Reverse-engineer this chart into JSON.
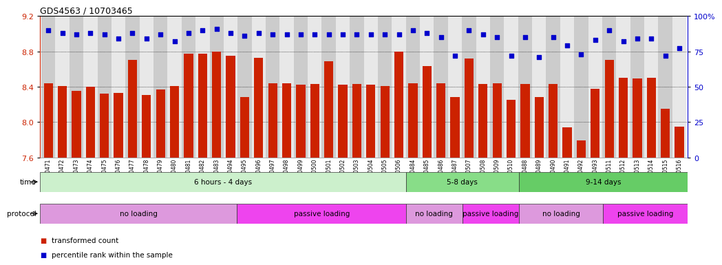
{
  "title": "GDS4563 / 10703465",
  "samples": [
    "GSM930471",
    "GSM930472",
    "GSM930473",
    "GSM930474",
    "GSM930475",
    "GSM930476",
    "GSM930477",
    "GSM930478",
    "GSM930479",
    "GSM930480",
    "GSM930481",
    "GSM930482",
    "GSM930483",
    "GSM930494",
    "GSM930495",
    "GSM930496",
    "GSM930497",
    "GSM930498",
    "GSM930499",
    "GSM930500",
    "GSM930501",
    "GSM930502",
    "GSM930503",
    "GSM930504",
    "GSM930505",
    "GSM930506",
    "GSM930484",
    "GSM930485",
    "GSM930486",
    "GSM930487",
    "GSM930507",
    "GSM930508",
    "GSM930509",
    "GSM930510",
    "GSM930488",
    "GSM930489",
    "GSM930490",
    "GSM930491",
    "GSM930492",
    "GSM930493",
    "GSM930511",
    "GSM930512",
    "GSM930513",
    "GSM930514",
    "GSM930515",
    "GSM930516"
  ],
  "bar_values": [
    8.44,
    8.41,
    8.35,
    8.4,
    8.32,
    8.33,
    8.7,
    8.31,
    8.37,
    8.41,
    8.77,
    8.77,
    8.8,
    8.75,
    8.28,
    8.73,
    8.44,
    8.44,
    8.42,
    8.43,
    8.69,
    8.42,
    8.43,
    8.42,
    8.41,
    8.8,
    8.44,
    8.63,
    8.44,
    8.28,
    8.72,
    8.43,
    8.44,
    8.25,
    8.43,
    8.28,
    8.43,
    7.94,
    7.79,
    8.38,
    8.7,
    8.5,
    8.49,
    8.5,
    8.15,
    7.95
  ],
  "percentile_values": [
    90,
    88,
    87,
    88,
    87,
    84,
    88,
    84,
    87,
    82,
    88,
    90,
    91,
    88,
    86,
    88,
    87,
    87,
    87,
    87,
    87,
    87,
    87,
    87,
    87,
    87,
    90,
    88,
    85,
    72,
    90,
    87,
    85,
    72,
    85,
    71,
    85,
    79,
    73,
    83,
    90,
    82,
    84,
    84,
    72,
    77
  ],
  "ylim_left": [
    7.6,
    9.2
  ],
  "ylim_right": [
    0,
    100
  ],
  "yticks_left": [
    7.6,
    8.0,
    8.4,
    8.8,
    9.2
  ],
  "yticks_right": [
    0,
    25,
    50,
    75,
    100
  ],
  "bar_color": "#cc2200",
  "dot_color": "#0000cc",
  "bar_bottom": 7.6,
  "time_groups": [
    {
      "label": "6 hours - 4 days",
      "start": 0,
      "end": 26,
      "color": "#ccf0cc"
    },
    {
      "label": "5-8 days",
      "start": 26,
      "end": 34,
      "color": "#88dd88"
    },
    {
      "label": "9-14 days",
      "start": 34,
      "end": 46,
      "color": "#66cc66"
    }
  ],
  "protocol_groups": [
    {
      "label": "no loading",
      "start": 0,
      "end": 14,
      "color": "#dd99dd"
    },
    {
      "label": "passive loading",
      "start": 14,
      "end": 26,
      "color": "#ee44ee"
    },
    {
      "label": "no loading",
      "start": 26,
      "end": 30,
      "color": "#dd99dd"
    },
    {
      "label": "passive loading",
      "start": 30,
      "end": 34,
      "color": "#ee44ee"
    },
    {
      "label": "no loading",
      "start": 34,
      "end": 40,
      "color": "#dd99dd"
    },
    {
      "label": "passive loading",
      "start": 40,
      "end": 46,
      "color": "#ee44ee"
    }
  ],
  "legend_items": [
    {
      "label": "transformed count",
      "color": "#cc2200"
    },
    {
      "label": "percentile rank within the sample",
      "color": "#0000cc"
    }
  ],
  "grid_lines": [
    7.6,
    8.0,
    8.4,
    8.8
  ],
  "title_fontsize": 9,
  "tick_fontsize": 5.5,
  "label_fontsize": 7.5,
  "bar_width": 0.65,
  "col_bg_even": "#cccccc",
  "col_bg_odd": "#e8e8e8"
}
